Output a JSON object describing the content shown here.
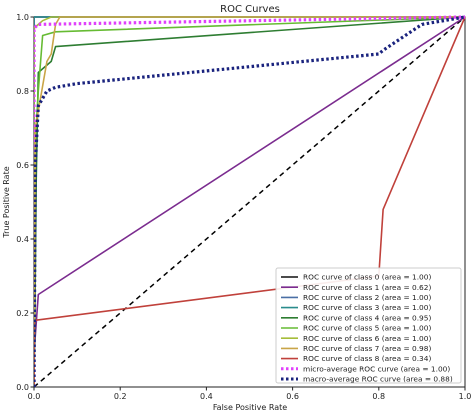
{
  "chart_data": {
    "type": "line",
    "title": "ROC Curves",
    "xlabel": "False Positive Rate",
    "ylabel": "True Positive Rate",
    "xlim": [
      0.0,
      1.0
    ],
    "ylim": [
      0.0,
      1.0
    ],
    "xticks": [
      "0.0",
      "0.2",
      "0.4",
      "0.6",
      "0.8",
      "1.0"
    ],
    "yticks": [
      "0.0",
      "0.2",
      "0.4",
      "0.6",
      "0.8",
      "1.0"
    ],
    "grid": false,
    "legend_position": "lower right",
    "baseline": {
      "x": [
        0,
        1
      ],
      "y": [
        0,
        1
      ],
      "color": "#000000",
      "dash": "dashed"
    },
    "series": [
      {
        "name": "ROC curve of class 0 (area = 1.00)",
        "color": "#111111",
        "style": "solid",
        "x": [
          0,
          0,
          1
        ],
        "y": [
          0,
          1,
          1
        ]
      },
      {
        "name": "ROC curve of class 1 (area = 0.62)",
        "color": "#7b2c8f",
        "style": "solid",
        "x": [
          0,
          0,
          0.01,
          1
        ],
        "y": [
          0,
          0.09,
          0.25,
          1
        ]
      },
      {
        "name": "ROC curve of class 2 (area = 1.00)",
        "color": "#4a6fa5",
        "style": "solid",
        "x": [
          0,
          0,
          1
        ],
        "y": [
          0,
          1,
          1
        ]
      },
      {
        "name": "ROC curve of class 3 (area = 1.00)",
        "color": "#2a8c8c",
        "style": "solid",
        "x": [
          0,
          0,
          1
        ],
        "y": [
          0,
          1,
          1
        ]
      },
      {
        "name": "ROC curve of class 4 (area = 0.95)",
        "color": "#2e7d32",
        "style": "solid",
        "x": [
          0,
          0.003,
          0.005,
          0.01,
          0.04,
          0.05,
          1
        ],
        "y": [
          0,
          0.3,
          0.55,
          0.85,
          0.88,
          0.92,
          1
        ]
      },
      {
        "name": "ROC curve of class 5 (area = 1.00)",
        "color": "#66bb33",
        "style": "solid",
        "x": [
          0,
          0,
          0.01,
          0.02,
          0.05,
          1
        ],
        "y": [
          0,
          0.6,
          0.8,
          0.95,
          0.96,
          1
        ]
      },
      {
        "name": "ROC curve of class 6 (area = 1.00)",
        "color": "#a6bd3a",
        "style": "solid",
        "x": [
          0,
          0,
          0.02,
          0.04,
          1
        ],
        "y": [
          0,
          0.97,
          0.99,
          1,
          1
        ]
      },
      {
        "name": "ROC curve of class 7 (area = 0.98)",
        "color": "#c9a548",
        "style": "solid",
        "x": [
          0,
          0.003,
          0.03,
          0.04,
          0.05,
          0.06,
          0.12,
          1
        ],
        "y": [
          0,
          0.7,
          0.88,
          0.9,
          0.98,
          1,
          1,
          1
        ]
      },
      {
        "name": "ROC curve of class 8 (area = 0.34)",
        "color": "#c0413b",
        "style": "solid",
        "x": [
          0,
          0,
          0.8,
          0.81,
          1
        ],
        "y": [
          0,
          0.18,
          0.3,
          0.48,
          1
        ]
      },
      {
        "name": "micro-average ROC curve (area = 1.00)",
        "color": "#e040fb",
        "style": "dotted",
        "x": [
          0,
          0,
          0.01,
          1
        ],
        "y": [
          0,
          0.97,
          0.98,
          1
        ]
      },
      {
        "name": "macro-average ROC curve (area = 0.88)",
        "color": "#1a237e",
        "style": "dotted",
        "x": [
          0,
          0.003,
          0.01,
          0.03,
          0.05,
          0.1,
          0.8,
          0.81,
          0.9,
          1
        ],
        "y": [
          0,
          0.6,
          0.76,
          0.8,
          0.81,
          0.82,
          0.9,
          0.91,
          0.98,
          1
        ]
      }
    ]
  }
}
